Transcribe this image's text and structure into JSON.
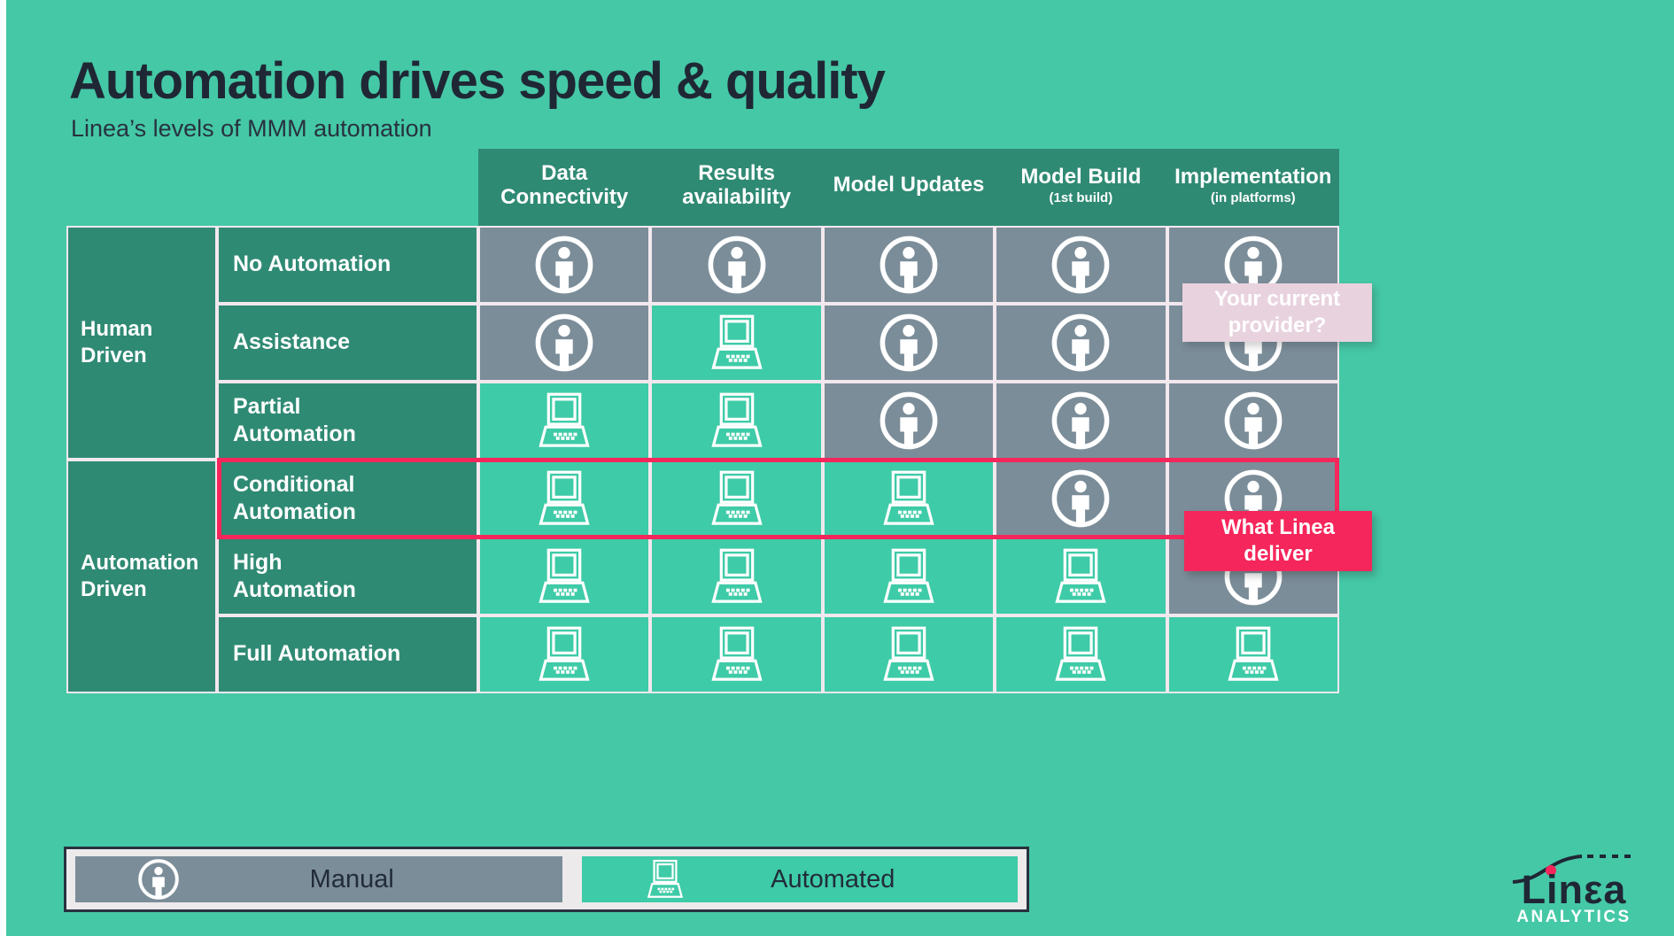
{
  "title": "Automation drives speed & quality",
  "subtitle": "Linea’s levels of MMM automation",
  "colors": {
    "background": "#45C8A6",
    "header_teal": "#2F8A74",
    "manual_gray": "#7B8D99",
    "automated_green": "#3ECBA7",
    "accent_pink": "#F5265B",
    "callout_light_pink": "#E8D2DE",
    "text_navy": "#1F2735",
    "cell_border": "#F2E8EE"
  },
  "matrix": {
    "columns": [
      {
        "label": "Data Connectivity",
        "sub": ""
      },
      {
        "label": "Results availability",
        "sub": ""
      },
      {
        "label": "Model Updates",
        "sub": ""
      },
      {
        "label": "Model Build",
        "sub": "(1st build)"
      },
      {
        "label": "Implementation",
        "sub": "(in platforms)"
      }
    ],
    "groups": [
      {
        "label": "Human Driven",
        "span": 3
      },
      {
        "label": "Automation Driven",
        "span": 3
      }
    ],
    "rows": [
      {
        "label": "No Automation",
        "highlighted": false,
        "cells": [
          "manual",
          "manual",
          "manual",
          "manual",
          "manual"
        ]
      },
      {
        "label": "Assistance",
        "highlighted": false,
        "cells": [
          "manual",
          "automated",
          "manual",
          "manual",
          "manual"
        ]
      },
      {
        "label": "Partial Automation",
        "highlighted": false,
        "cells": [
          "automated",
          "automated",
          "manual",
          "manual",
          "manual"
        ]
      },
      {
        "label": "Conditional Automation",
        "highlighted": true,
        "cells": [
          "automated",
          "automated",
          "automated",
          "manual",
          "manual"
        ]
      },
      {
        "label": "High Automation",
        "highlighted": false,
        "cells": [
          "automated",
          "automated",
          "automated",
          "automated",
          "manual"
        ]
      },
      {
        "label": "Full Automation",
        "highlighted": false,
        "cells": [
          "automated",
          "automated",
          "automated",
          "automated",
          "automated"
        ]
      }
    ],
    "cell_icons": {
      "manual": "person-icon",
      "automated": "laptop-icon"
    }
  },
  "callouts": [
    {
      "text": "Your current provider?",
      "style": "light-pink"
    },
    {
      "text": "What Linea deliver",
      "style": "accent-pink"
    }
  ],
  "legend": {
    "items": [
      {
        "icon": "person-icon",
        "label": "Manual",
        "style": "manual"
      },
      {
        "icon": "laptop-icon",
        "label": "Automated",
        "style": "automated"
      }
    ]
  },
  "logo": {
    "brand": "Linεa",
    "tagline": "ANALYTICS"
  }
}
